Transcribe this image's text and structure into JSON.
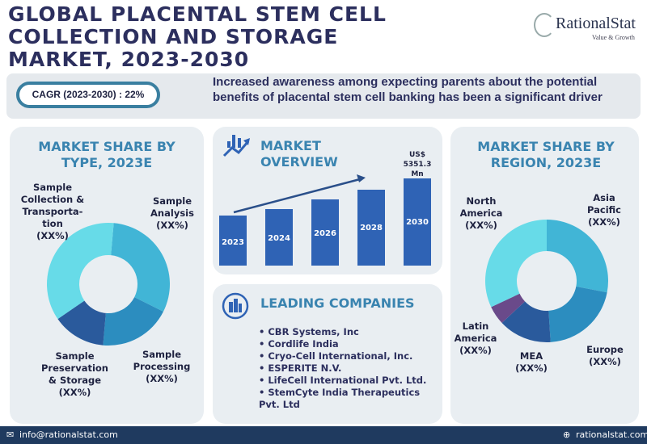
{
  "header": {
    "title_lines": [
      "GLOBAL PLACENTAL STEM CELL",
      "COLLECTION AND STORAGE",
      "MARKET, 2023-2030"
    ],
    "logo": {
      "name": "RationalStat",
      "tagline": "Value & Growth"
    }
  },
  "banner": {
    "cagr": "CAGR (2023-2030) : 22%",
    "driver": "Increased awareness among expecting parents about the potential benefits of placental stem cell banking has been a significant driver"
  },
  "colors": {
    "title": "#2c2f5e",
    "accent": "#3a84b0",
    "bar": "#2f63b5",
    "footer": "#1f3a5f"
  },
  "chart_data": [
    {
      "type": "pie",
      "title": "MARKET SHARE BY TYPE, 2023E",
      "slices": [
        {
          "label": "Sample Analysis",
          "value_label": "(XX%)",
          "approx_share": 0.31,
          "color": "#41b5d6"
        },
        {
          "label": "Sample Processing",
          "value_label": "(XX%)",
          "approx_share": 0.19,
          "color": "#2c8dbf"
        },
        {
          "label": "Sample Preservation & Storage",
          "value_label": "(XX%)",
          "approx_share": 0.14,
          "color": "#2a5a9c"
        },
        {
          "label": "Sample Collection & Transporta-tion",
          "value_label": "(XX%)",
          "approx_share": 0.36,
          "color": "#67dbe8"
        }
      ]
    },
    {
      "type": "bar",
      "title": "MARKET OVERVIEW",
      "categories": [
        "2023",
        "2024",
        "2026",
        "2028",
        "2030"
      ],
      "relative_heights": [
        0.57,
        0.65,
        0.76,
        0.87,
        1.0
      ],
      "annotation": "US$ 5351.3 Mn"
    },
    {
      "type": "pie",
      "title": "MARKET SHARE BY REGION, 2023E",
      "slices": [
        {
          "label": "Asia Pacific",
          "value_label": "(XX%)",
          "approx_share": 0.28,
          "color": "#41b5d6"
        },
        {
          "label": "Europe",
          "value_label": "(XX%)",
          "approx_share": 0.21,
          "color": "#2c8dbf"
        },
        {
          "label": "MEA",
          "value_label": "(XX%)",
          "approx_share": 0.14,
          "color": "#2a5a9c"
        },
        {
          "label": "Latin America",
          "value_label": "(XX%)",
          "approx_share": 0.05,
          "color": "#6a4a8a"
        },
        {
          "label": "North America",
          "value_label": "(XX%)",
          "approx_share": 0.32,
          "color": "#67dbe8"
        }
      ]
    }
  ],
  "companies": {
    "title": "LEADING COMPANIES",
    "items": [
      "CBR Systems, Inc",
      "Cordlife India",
      "Cryo-Cell International, Inc.",
      "ESPERITE N.V.",
      "LifeCell International Pvt. Ltd.",
      "StemCyte India Therapeutics Pvt. Ltd"
    ]
  },
  "footer": {
    "email": "info@rationalstat.com",
    "website": "rationalstat.com"
  }
}
